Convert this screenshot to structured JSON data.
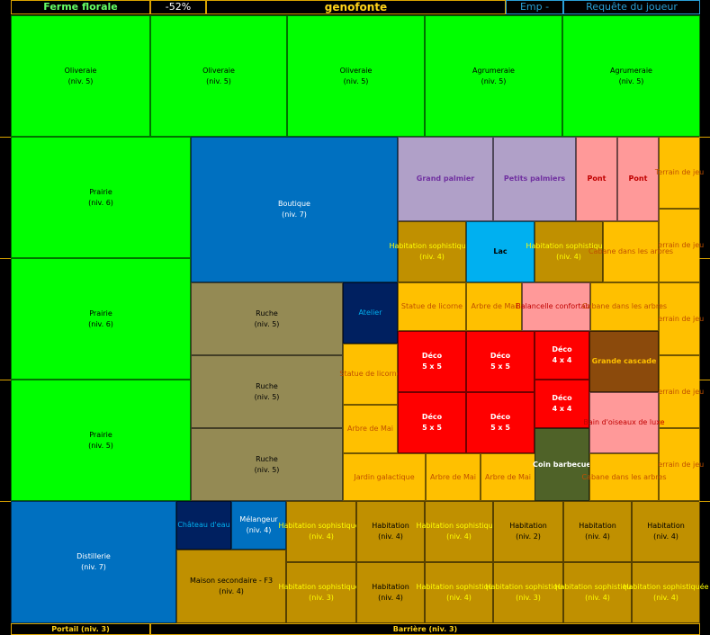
{
  "header": {
    "farm_name": "Ferme florale",
    "percent": "-52%",
    "player": "genofonte",
    "emp": "Emp -",
    "request": "Requête du joueur"
  },
  "footer": {
    "portal": "Portail (niv. 3)",
    "barrier": "Barrière (niv. 3)"
  },
  "colors": {
    "green": "#00ff00",
    "blue": "#0070c0",
    "olive": "#948a54",
    "gold": "#ffc000",
    "dark_gold": "#c09000",
    "red": "#ff0000",
    "pink": "#ff9999",
    "lavender": "#b0a0c8",
    "sky": "#00b0f0",
    "navy": "#002060",
    "brown": "#8b4a0c",
    "dark_olive": "#4f6228",
    "accent_border": "#d9a300"
  },
  "cells": [
    {
      "n": "Oliveraie",
      "l": "Oliveraie\n(niv. 5)",
      "c": "green",
      "t": "#000"
    },
    {
      "n": "Oliveraie",
      "l": "Oliveraie\n(niv. 5)",
      "c": "green",
      "t": "#000"
    },
    {
      "n": "Oliveraie",
      "l": "Oliveraie\n(niv. 5)",
      "c": "green",
      "t": "#000"
    },
    {
      "n": "Agrumeraie",
      "l": "Agrumeraie\n(niv. 5)",
      "c": "green",
      "t": "#000"
    },
    {
      "n": "Agrumeraie",
      "l": "Agrumeraie\n(niv. 5)",
      "c": "green",
      "t": "#000"
    },
    {
      "n": "Prairie",
      "l": "Prairie\n(niv. 6)",
      "c": "green",
      "t": "#000"
    },
    {
      "n": "Prairie",
      "l": "Prairie\n(niv. 6)",
      "c": "green",
      "t": "#000"
    },
    {
      "n": "Prairie",
      "l": "Prairie\n(niv. 5)",
      "c": "green",
      "t": "#000"
    },
    {
      "n": "Boutique",
      "l": "Boutique\n(niv. 7)",
      "c": "blue",
      "t": "#fff"
    },
    {
      "n": "Ruche",
      "l": "Ruche\n(niv. 5)",
      "c": "olive",
      "t": "#000"
    },
    {
      "n": "Ruche",
      "l": "Ruche\n(niv. 5)",
      "c": "olive",
      "t": "#000"
    },
    {
      "n": "Ruche",
      "l": "Ruche\n(niv. 5)",
      "c": "olive",
      "t": "#000"
    },
    {
      "n": "Atelier",
      "l": "Atelier",
      "c": "navy",
      "t": "#00b0f0"
    },
    {
      "n": "Statue de licorne",
      "l": "Statue de licorne",
      "c": "gold",
      "t": "#c05000"
    },
    {
      "n": "Arbre de Mai",
      "l": "Arbre de Mai",
      "c": "gold",
      "t": "#c05000"
    },
    {
      "n": "Jardin galactique",
      "l": "Jardin galactique",
      "c": "gold",
      "t": "#c05000"
    },
    {
      "n": "Arbre de Mai",
      "l": "Arbre de Mai",
      "c": "gold",
      "t": "#c05000"
    },
    {
      "n": "Arbre de Mai",
      "l": "Arbre de Mai",
      "c": "gold",
      "t": "#c05000"
    },
    {
      "n": "Grand palmier",
      "l": "Grand palmier",
      "c": "lavender",
      "t": "#7030a0"
    },
    {
      "n": "Petits palmiers",
      "l": "Petits palmiers",
      "c": "lavender",
      "t": "#7030a0"
    },
    {
      "n": "Pont",
      "l": "Pont",
      "c": "pink",
      "t": "#c00000"
    },
    {
      "n": "Pont",
      "l": "Pont",
      "c": "pink",
      "t": "#c00000"
    },
    {
      "n": "Terrain de jeu",
      "l": "Terrain de jeu",
      "c": "gold",
      "t": "#c05000"
    },
    {
      "n": "Terrain de jeu",
      "l": "Terrain de jeu",
      "c": "gold",
      "t": "#c05000"
    },
    {
      "n": "Terrain de jeu",
      "l": "Terrain de jeu",
      "c": "gold",
      "t": "#c05000"
    },
    {
      "n": "Terrain de jeu",
      "l": "Terrain de jeu",
      "c": "gold",
      "t": "#c05000"
    },
    {
      "n": "Terrain de jeu",
      "l": "Terrain de jeu",
      "c": "gold",
      "t": "#c05000"
    },
    {
      "n": "Habitation sophistiquée",
      "l": "Habitation sophistiquée\n(niv. 4)",
      "c": "dark_gold",
      "t": "#ffff00"
    },
    {
      "n": "Lac",
      "l": "Lac",
      "c": "sky",
      "t": "#000"
    },
    {
      "n": "Habitation sophistiquée",
      "l": "Habitation sophistiquée\n(niv. 4)",
      "c": "dark_gold",
      "t": "#ffff00"
    },
    {
      "n": "Cabane dans les arbres",
      "l": "Cabane dans les arbres",
      "c": "gold",
      "t": "#c05000"
    },
    {
      "n": "Statue de licorne",
      "l": "Statue de licorne",
      "c": "gold",
      "t": "#c05000"
    },
    {
      "n": "Arbre de Mai",
      "l": "Arbre de Mai",
      "c": "gold",
      "t": "#c05000"
    },
    {
      "n": "Balancelle confortable",
      "l": "Balancelle confortable",
      "c": "pink",
      "t": "#c00000"
    },
    {
      "n": "Cabane dans les arbres",
      "l": "Cabane dans les arbres",
      "c": "gold",
      "t": "#c05000"
    },
    {
      "n": "Déco 5x5",
      "l": "Déco\n5 x 5",
      "c": "red",
      "t": "#fff"
    },
    {
      "n": "Déco 5x5",
      "l": "Déco\n5 x 5",
      "c": "red",
      "t": "#fff"
    },
    {
      "n": "Déco 5x5",
      "l": "Déco\n5 x 5",
      "c": "red",
      "t": "#fff"
    },
    {
      "n": "Déco 5x5",
      "l": "Déco\n5 x 5",
      "c": "red",
      "t": "#fff"
    },
    {
      "n": "Déco 4x4",
      "l": "Déco\n4 x 4",
      "c": "red",
      "t": "#fff"
    },
    {
      "n": "Déco 4x4",
      "l": "Déco\n4 x 4",
      "c": "red",
      "t": "#fff"
    },
    {
      "n": "Grande cascade",
      "l": "Grande cascade",
      "c": "brown",
      "t": "#ffc000"
    },
    {
      "n": "Bain d'oiseaux de luxe",
      "l": "Bain d'oiseaux de luxe",
      "c": "pink",
      "t": "#c00000"
    },
    {
      "n": "Coin barbecue",
      "l": "Coin barbecue",
      "c": "dark_olive",
      "t": "#fff"
    },
    {
      "n": "Cabane dans les arbres",
      "l": "Cabane dans les arbres",
      "c": "gold",
      "t": "#c05000"
    },
    {
      "n": "Distillerie",
      "l": "Distillerie\n(niv. 7)",
      "c": "blue",
      "t": "#fff"
    },
    {
      "n": "Château d'eau",
      "l": "Château d'eau",
      "c": "navy",
      "t": "#00b0f0"
    },
    {
      "n": "Mélangeur",
      "l": "Mélangeur\n(niv. 4)",
      "c": "blue",
      "t": "#fff"
    },
    {
      "n": "Maison secondaire - F3",
      "l": "Maison secondaire - F3\n(niv. 4)",
      "c": "dark_gold",
      "t": "#000"
    },
    {
      "n": "Habitation sophistiquée",
      "l": "Habitation sophistiquée\n(niv. 4)",
      "c": "dark_gold",
      "t": "#ffff00"
    },
    {
      "n": "Habitation",
      "l": "Habitation\n(niv. 4)",
      "c": "dark_gold",
      "t": "#000"
    },
    {
      "n": "Habitation sophistiquée",
      "l": "Habitation sophistiquée\n(niv. 4)",
      "c": "dark_gold",
      "t": "#ffff00"
    },
    {
      "n": "Habitation",
      "l": "Habitation\n(niv. 2)",
      "c": "dark_gold",
      "t": "#000"
    },
    {
      "n": "Habitation",
      "l": "Habitation\n(niv. 4)",
      "c": "dark_gold",
      "t": "#000"
    },
    {
      "n": "Habitation",
      "l": "Habitation\n(niv. 4)",
      "c": "dark_gold",
      "t": "#000"
    },
    {
      "n": "Habitation sophistiquée",
      "l": "Habitation sophistiquée\n(niv. 3)",
      "c": "dark_gold",
      "t": "#ffff00"
    },
    {
      "n": "Habitation",
      "l": "Habitation\n(niv. 4)",
      "c": "dark_gold",
      "t": "#000"
    },
    {
      "n": "Habitation sophistiquée",
      "l": "Habitation sophistiquée\n(niv. 4)",
      "c": "dark_gold",
      "t": "#ffff00"
    },
    {
      "n": "Habitation sophistiquée",
      "l": "Habitation sophistiquée\n(niv. 3)",
      "c": "dark_gold",
      "t": "#ffff00"
    },
    {
      "n": "Habitation sophistiquée",
      "l": "Habitation sophistiquée\n(niv. 4)",
      "c": "dark_gold",
      "t": "#ffff00"
    },
    {
      "n": "Habitation sophistiquée",
      "l": "Habitation sophistiquée\n(niv. 4)",
      "c": "dark_gold",
      "t": "#ffff00"
    }
  ]
}
